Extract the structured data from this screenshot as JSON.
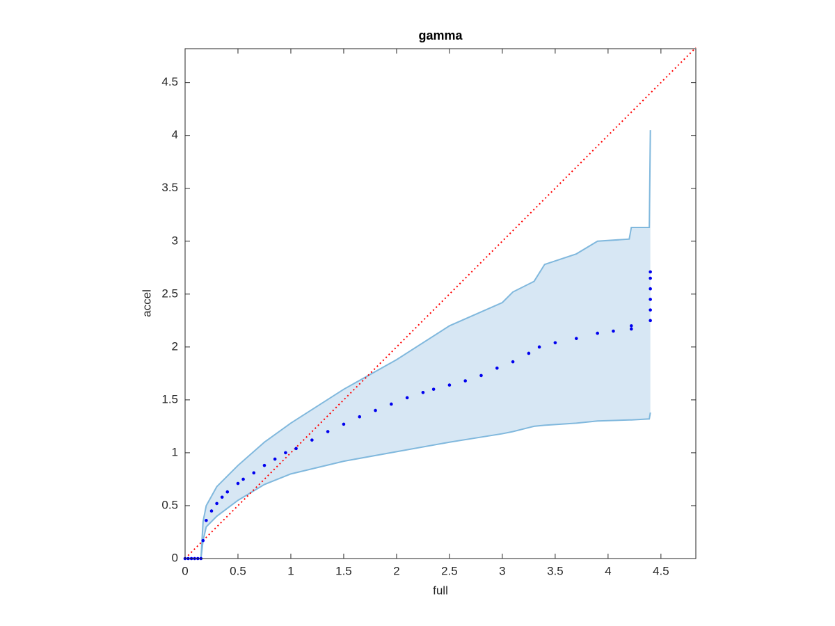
{
  "chart_data": {
    "type": "scatter",
    "title": "gamma",
    "x_label": "full",
    "y_label": "accel",
    "xlim": [
      0,
      4.83
    ],
    "ylim": [
      0,
      4.82
    ],
    "xticks": [
      0,
      0.5,
      1,
      1.5,
      2,
      2.5,
      3,
      3.5,
      4,
      4.5
    ],
    "yticks": [
      0,
      0.5,
      1,
      1.5,
      2,
      2.5,
      3,
      3.5,
      4,
      4.5
    ],
    "color": "#0000ee",
    "diagonal_color": "#ff0000",
    "x": [
      0,
      0.03,
      0.06,
      0.09,
      0.12,
      0.15,
      0.17,
      0.2,
      0.25,
      0.3,
      0.35,
      0.4,
      0.5,
      0.55,
      0.65,
      0.75,
      0.85,
      0.95,
      1.05,
      1.2,
      1.35,
      1.5,
      1.65,
      1.8,
      1.95,
      2.1,
      2.25,
      2.35,
      2.5,
      2.65,
      2.8,
      2.95,
      3.1,
      3.25,
      3.35,
      3.5,
      3.7,
      3.9,
      4.05,
      4.22,
      4.22,
      4.4,
      4.4,
      4.4,
      4.4,
      4.4,
      4.4
    ],
    "y": [
      0,
      0,
      0,
      0,
      0,
      0,
      0.17,
      0.36,
      0.45,
      0.52,
      0.58,
      0.63,
      0.71,
      0.75,
      0.81,
      0.88,
      0.94,
      1.0,
      1.04,
      1.12,
      1.2,
      1.27,
      1.34,
      1.4,
      1.46,
      1.52,
      1.57,
      1.6,
      1.64,
      1.68,
      1.73,
      1.8,
      1.86,
      1.94,
      2.0,
      2.04,
      2.08,
      2.13,
      2.15,
      2.17,
      2.2,
      2.25,
      2.35,
      2.45,
      2.55,
      2.65,
      2.71
    ],
    "band": {
      "fill": "#d7e7f4",
      "edge": "#80b8dd",
      "x": [
        0.15,
        0.17,
        0.2,
        0.3,
        0.5,
        0.75,
        1,
        1.5,
        2,
        2.5,
        3,
        3.1,
        3.3,
        3.4,
        3.7,
        3.9,
        4.2,
        4.22,
        4.39,
        4.4
      ],
      "lower": [
        0,
        0.17,
        0.3,
        0.4,
        0.55,
        0.7,
        0.8,
        0.92,
        1.01,
        1.1,
        1.18,
        1.2,
        1.25,
        1.26,
        1.28,
        1.3,
        1.31,
        1.31,
        1.32,
        1.38
      ],
      "upper": [
        0,
        0.35,
        0.5,
        0.68,
        0.88,
        1.1,
        1.28,
        1.6,
        1.88,
        2.2,
        2.42,
        2.52,
        2.62,
        2.78,
        2.88,
        3.0,
        3.02,
        3.13,
        3.13,
        4.05
      ]
    }
  }
}
